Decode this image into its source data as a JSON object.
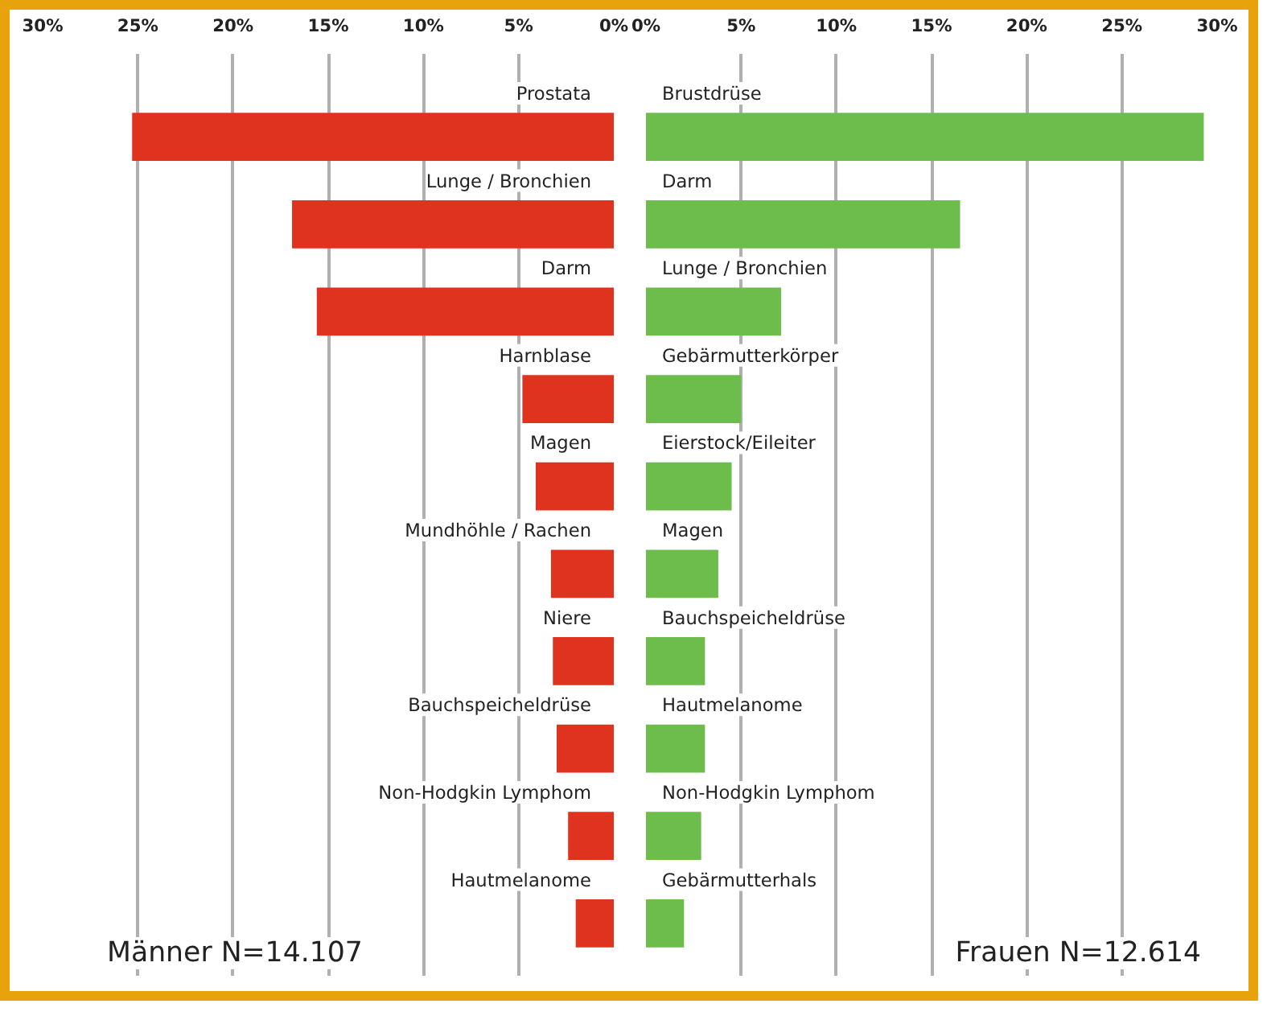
{
  "chart_data": [
    {
      "type": "bar",
      "orientation": "horizontal",
      "color": "#e0331f",
      "categories": [
        "Prostata",
        "Lunge / Bronchien",
        "Darm",
        "Harnblase",
        "Magen",
        "Mundhöhle / Rachen",
        "Niere",
        "Bauchspeicheldrüse",
        "Non-Hodgkin Lymphom",
        "Hautmelanome"
      ],
      "values": [
        25.3,
        16.9,
        15.6,
        4.8,
        4.1,
        3.3,
        3.2,
        3.0,
        2.4,
        2.0
      ],
      "xlim": [
        30,
        0
      ],
      "xticks": [
        {
          "value": 30,
          "label": "30%"
        },
        {
          "value": 25,
          "label": "25%"
        },
        {
          "value": 20,
          "label": "20%"
        },
        {
          "value": 15,
          "label": "15%"
        },
        {
          "value": 10,
          "label": "10%"
        },
        {
          "value": 5,
          "label": "5%"
        },
        {
          "value": 0,
          "label": "0%"
        }
      ],
      "grid": "x",
      "annotations": [
        "Männer N=14.107"
      ]
    },
    {
      "type": "bar",
      "orientation": "horizontal",
      "color": "#6dbd4c",
      "categories": [
        "Brustdrüse",
        "Darm",
        "Lunge / Bronchien",
        "Gebärmutterkörper",
        "Eierstock/Eileiter",
        "Magen",
        "Bauchspeicheldrüse",
        "Hautmelanome",
        "Non-Hodgkin Lymphom",
        "Gebärmutterhals"
      ],
      "values": [
        29.3,
        16.5,
        7.1,
        5.0,
        4.5,
        3.8,
        3.1,
        3.1,
        2.9,
        2.0
      ],
      "xlim": [
        0,
        30
      ],
      "xticks": [
        {
          "value": 0,
          "label": "0%"
        },
        {
          "value": 5,
          "label": "5%"
        },
        {
          "value": 10,
          "label": "10%"
        },
        {
          "value": 15,
          "label": "15%"
        },
        {
          "value": 20,
          "label": "20%"
        },
        {
          "value": 25,
          "label": "25%"
        },
        {
          "value": 30,
          "label": "30%"
        }
      ],
      "grid": "x",
      "annotations": [
        "Frauen N=12.614"
      ]
    }
  ]
}
